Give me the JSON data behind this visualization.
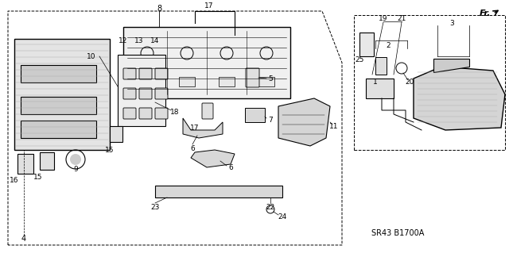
{
  "title": "",
  "background_color": "#ffffff",
  "diagram_code": "SR43 B1700A",
  "fr_label": "Fr.",
  "border_color": "#000000",
  "line_color": "#000000",
  "text_color": "#000000",
  "part_numbers": {
    "main_unit": "8",
    "heater_control_panel": "4",
    "bracket_left": "10",
    "switch_cluster_top": "12",
    "switch_cluster_label1": "13",
    "switch_cluster_label2": "14",
    "cable_upper": "17",
    "cable_connector": "5",
    "bracket_lower": "18",
    "link_upper": "6",
    "link_lower": "6",
    "link_assembly": "7",
    "servo_motor": "11",
    "switch_left_top": "15",
    "switch_left_bottom": "16",
    "switch_right": "15",
    "knob": "9",
    "rod_bar": "23",
    "bar_assembly": "22",
    "screw": "24",
    "right_unit": "3",
    "wire_harness_label1": "19",
    "wire_harness_label2": "21",
    "wire_harness_group": "2",
    "connector_small": "1",
    "connector_large": "20",
    "resistor": "25"
  },
  "fig_width": 6.4,
  "fig_height": 3.19,
  "dpi": 100
}
